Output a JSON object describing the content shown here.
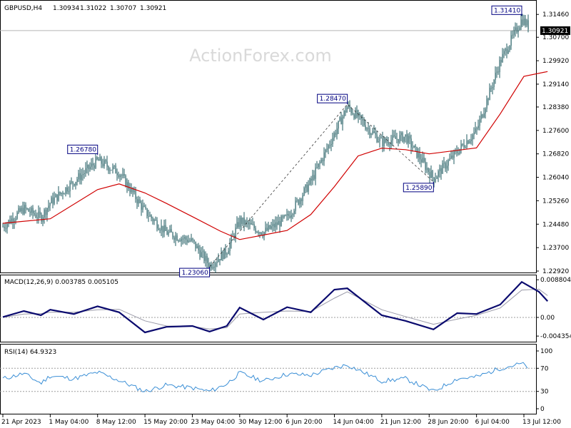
{
  "chart_data": [
    {
      "type": "candlestick",
      "panel": "price",
      "header": {
        "symbol": "GBPUSD,H4",
        "open": "1.30934",
        "high": "1.31022",
        "low": "1.30707",
        "close": "1.30921"
      },
      "watermark": "ActionForex.com",
      "ylim": [
        1.2292,
        1.3175
      ],
      "yticks": [
        "1.31460",
        "1.30700",
        "1.29920",
        "1.29140",
        "1.28380",
        "1.27600",
        "1.26820",
        "1.26040",
        "1.25260",
        "1.24480",
        "1.23700",
        "1.22920"
      ],
      "xticks": [
        "21 Apr 2023",
        "1 May 04:00",
        "8 May 12:00",
        "15 May 20:00",
        "23 May 04:00",
        "30 May 12:00",
        "6 Jun 20:00",
        "14 Jun 04:00",
        "21 Jun 12:00",
        "28 Jun 20:00",
        "6 Jul 04:00",
        "13 Jul 12:00"
      ],
      "current_price": "1.30921",
      "current_price_value": 1.30921,
      "annotations": [
        {
          "text": "1.26780",
          "x": "8 May 12:00",
          "y": 1.2678
        },
        {
          "text": "1.23060",
          "x": "25 May 20:00",
          "y": 1.2306
        },
        {
          "text": "1.28470",
          "x": "16 Jun 04:00",
          "y": 1.2847
        },
        {
          "text": "1.25890",
          "x": "29 Jun 12:00",
          "y": 1.2589
        },
        {
          "text": "1.31410",
          "x": "13 Jul 04:00",
          "y": 1.3141
        }
      ],
      "swing_line": [
        {
          "x": "25 May 20:00",
          "y": 1.2306
        },
        {
          "x": "16 Jun 04:00",
          "y": 1.2847
        },
        {
          "x": "29 Jun 12:00",
          "y": 1.2589
        }
      ],
      "moving_average": [
        {
          "x": "21 Apr 2023",
          "y": 1.2451
        },
        {
          "x": "1 May 04:00",
          "y": 1.2466
        },
        {
          "x": "8 May 12:00",
          "y": 1.2563
        },
        {
          "x": "11 May 20:00",
          "y": 1.2582
        },
        {
          "x": "15 May 20:00",
          "y": 1.2552
        },
        {
          "x": "19 May 04:00",
          "y": 1.2517
        },
        {
          "x": "23 May 04:00",
          "y": 1.2473
        },
        {
          "x": "27 May 12:00",
          "y": 1.2425
        },
        {
          "x": "30 May 12:00",
          "y": 1.2397
        },
        {
          "x": "6 Jun 20:00",
          "y": 1.2427
        },
        {
          "x": "10 Jun 12:00",
          "y": 1.248
        },
        {
          "x": "14 Jun 04:00",
          "y": 1.2573
        },
        {
          "x": "17 Jun 20:00",
          "y": 1.2675
        },
        {
          "x": "21 Jun 12:00",
          "y": 1.2701
        },
        {
          "x": "25 Jun 04:00",
          "y": 1.2696
        },
        {
          "x": "28 Jun 20:00",
          "y": 1.2682
        },
        {
          "x": "6 Jul 04:00",
          "y": 1.2702
        },
        {
          "x": "9 Jul 20:00",
          "y": 1.2815
        },
        {
          "x": "13 Jul 12:00",
          "y": 1.294
        },
        {
          "x": "17 Jul 04:00",
          "y": 1.2956
        }
      ],
      "price_path": [
        {
          "x": "21 Apr 2023",
          "y": 1.244
        },
        {
          "x": "25 Apr 12:00",
          "y": 1.25
        },
        {
          "x": "29 Apr 04:00",
          "y": 1.247
        },
        {
          "x": "1 May 04:00",
          "y": 1.252
        },
        {
          "x": "4 May 20:00",
          "y": 1.259
        },
        {
          "x": "8 May 12:00",
          "y": 1.266
        },
        {
          "x": "11 May 20:00",
          "y": 1.262
        },
        {
          "x": "15 May 20:00",
          "y": 1.249
        },
        {
          "x": "19 May 04:00",
          "y": 1.242
        },
        {
          "x": "23 May 04:00",
          "y": 1.239
        },
        {
          "x": "25 May 20:00",
          "y": 1.231
        },
        {
          "x": "28 May 12:00",
          "y": 1.236
        },
        {
          "x": "30 May 12:00",
          "y": 1.246
        },
        {
          "x": "3 Jun 04:00",
          "y": 1.242
        },
        {
          "x": "6 Jun 20:00",
          "y": 1.247
        },
        {
          "x": "10 Jun 12:00",
          "y": 1.259
        },
        {
          "x": "14 Jun 04:00",
          "y": 1.275
        },
        {
          "x": "16 Jun 04:00",
          "y": 1.284
        },
        {
          "x": "21 Jun 12:00",
          "y": 1.272
        },
        {
          "x": "25 Jun 04:00",
          "y": 1.274
        },
        {
          "x": "29 Jun 12:00",
          "y": 1.26
        },
        {
          "x": "3 Jul 04:00",
          "y": 1.269
        },
        {
          "x": "6 Jul 04:00",
          "y": 1.276
        },
        {
          "x": "9 Jul 20:00",
          "y": 1.299
        },
        {
          "x": "13 Jul 04:00",
          "y": 1.313
        },
        {
          "x": "15 Jul 20:00",
          "y": 1.307
        },
        {
          "x": "17 Jul 04:00",
          "y": 1.3092
        }
      ]
    },
    {
      "type": "line",
      "panel": "macd",
      "label": "MACD(12,26,9) 0.003785 0.005105",
      "ylim": [
        -0.0055,
        0.0095
      ],
      "yticks": [
        "0.008804",
        "0.00",
        "-0.004354"
      ],
      "series": [
        {
          "name": "MACD",
          "points": [
            {
              "x": "21 Apr 2023",
              "y": 0.0001
            },
            {
              "x": "25 Apr 12:00",
              "y": 0.0015
            },
            {
              "x": "29 Apr 04:00",
              "y": 0.0005
            },
            {
              "x": "1 May 04:00",
              "y": 0.0018
            },
            {
              "x": "4 May 20:00",
              "y": 0.0008
            },
            {
              "x": "8 May 12:00",
              "y": 0.0026
            },
            {
              "x": "11 May 20:00",
              "y": 0.0012
            },
            {
              "x": "15 May 20:00",
              "y": -0.0035
            },
            {
              "x": "19 May 04:00",
              "y": -0.0022
            },
            {
              "x": "23 May 04:00",
              "y": -0.002
            },
            {
              "x": "25 May 20:00",
              "y": -0.0033
            },
            {
              "x": "28 May 12:00",
              "y": -0.002
            },
            {
              "x": "30 May 12:00",
              "y": 0.0023
            },
            {
              "x": "3 Jun 04:00",
              "y": -0.0005
            },
            {
              "x": "6 Jun 20:00",
              "y": 0.0024
            },
            {
              "x": "10 Jun 12:00",
              "y": 0.0012
            },
            {
              "x": "14 Jun 04:00",
              "y": 0.0065
            },
            {
              "x": "16 Jun 04:00",
              "y": 0.0068
            },
            {
              "x": "21 Jun 12:00",
              "y": 0.0005
            },
            {
              "x": "25 Jun 04:00",
              "y": -0.0008
            },
            {
              "x": "29 Jun 12:00",
              "y": -0.0028
            },
            {
              "x": "3 Jul 04:00",
              "y": 0.001
            },
            {
              "x": "6 Jul 04:00",
              "y": 0.0008
            },
            {
              "x": "9 Jul 20:00",
              "y": 0.003
            },
            {
              "x": "13 Jul 04:00",
              "y": 0.0083
            },
            {
              "x": "15 Jul 20:00",
              "y": 0.006
            },
            {
              "x": "17 Jul 04:00",
              "y": 0.0038
            }
          ]
        },
        {
          "name": "Signal",
          "points": [
            {
              "x": "21 Apr 2023",
              "y": 0.0
            },
            {
              "x": "25 Apr 12:00",
              "y": 0.0008
            },
            {
              "x": "29 Apr 04:00",
              "y": 0.0009
            },
            {
              "x": "1 May 04:00",
              "y": 0.0012
            },
            {
              "x": "4 May 20:00",
              "y": 0.0012
            },
            {
              "x": "8 May 12:00",
              "y": 0.0018
            },
            {
              "x": "11 May 20:00",
              "y": 0.0019
            },
            {
              "x": "15 May 20:00",
              "y": -0.0008
            },
            {
              "x": "19 May 04:00",
              "y": -0.002
            },
            {
              "x": "23 May 04:00",
              "y": -0.0021
            },
            {
              "x": "25 May 20:00",
              "y": -0.0027
            },
            {
              "x": "28 May 12:00",
              "y": -0.0024
            },
            {
              "x": "30 May 12:00",
              "y": 0.0008
            },
            {
              "x": "3 Jun 04:00",
              "y": 0.0012
            },
            {
              "x": "6 Jun 20:00",
              "y": 0.0015
            },
            {
              "x": "10 Jun 12:00",
              "y": 0.0014
            },
            {
              "x": "14 Jun 04:00",
              "y": 0.0045
            },
            {
              "x": "16 Jun 04:00",
              "y": 0.006
            },
            {
              "x": "21 Jun 12:00",
              "y": 0.0018
            },
            {
              "x": "25 Jun 04:00",
              "y": 0.0002
            },
            {
              "x": "29 Jun 12:00",
              "y": -0.0016
            },
            {
              "x": "3 Jul 04:00",
              "y": -0.0004
            },
            {
              "x": "6 Jul 04:00",
              "y": 0.0005
            },
            {
              "x": "9 Jul 20:00",
              "y": 0.0022
            },
            {
              "x": "13 Jul 04:00",
              "y": 0.0064
            },
            {
              "x": "15 Jul 20:00",
              "y": 0.0066
            },
            {
              "x": "17 Jul 04:00",
              "y": 0.0051
            }
          ]
        }
      ]
    },
    {
      "type": "line",
      "panel": "rsi",
      "label": "RSI(14) 64.9323",
      "ylim": [
        0,
        100
      ],
      "yticks": [
        "100",
        "70",
        "30",
        "0"
      ],
      "levels": [
        70,
        30
      ],
      "series": [
        {
          "name": "RSI",
          "points": [
            {
              "x": "21 Apr 2023",
              "y": 52
            },
            {
              "x": "25 Apr 12:00",
              "y": 61
            },
            {
              "x": "29 Apr 04:00",
              "y": 44
            },
            {
              "x": "1 May 04:00",
              "y": 57
            },
            {
              "x": "4 May 20:00",
              "y": 52
            },
            {
              "x": "8 May 12:00",
              "y": 63
            },
            {
              "x": "11 May 20:00",
              "y": 49
            },
            {
              "x": "15 May 20:00",
              "y": 30
            },
            {
              "x": "19 May 04:00",
              "y": 41
            },
            {
              "x": "23 May 04:00",
              "y": 36
            },
            {
              "x": "25 May 20:00",
              "y": 30
            },
            {
              "x": "28 May 12:00",
              "y": 43
            },
            {
              "x": "30 May 12:00",
              "y": 62
            },
            {
              "x": "3 Jun 04:00",
              "y": 48
            },
            {
              "x": "6 Jun 20:00",
              "y": 60
            },
            {
              "x": "10 Jun 12:00",
              "y": 58
            },
            {
              "x": "14 Jun 04:00",
              "y": 71
            },
            {
              "x": "16 Jun 04:00",
              "y": 76
            },
            {
              "x": "21 Jun 12:00",
              "y": 48
            },
            {
              "x": "25 Jun 04:00",
              "y": 52
            },
            {
              "x": "29 Jun 12:00",
              "y": 30
            },
            {
              "x": "3 Jul 04:00",
              "y": 52
            },
            {
              "x": "6 Jul 04:00",
              "y": 55
            },
            {
              "x": "9 Jul 20:00",
              "y": 70
            },
            {
              "x": "13 Jul 04:00",
              "y": 78
            },
            {
              "x": "15 Jul 20:00",
              "y": 61
            },
            {
              "x": "17 Jul 04:00",
              "y": 65
            }
          ]
        }
      ]
    }
  ],
  "colors": {
    "candles": "#1f5b60",
    "moving_average": "#d00000",
    "macd": "#0a0a6e",
    "signal": "#9a9aa8",
    "rsi": "#3b8fd6",
    "price_line": "#b5b5b5",
    "grid_level": "#9e9e9e",
    "label_box_text": "#000080"
  }
}
